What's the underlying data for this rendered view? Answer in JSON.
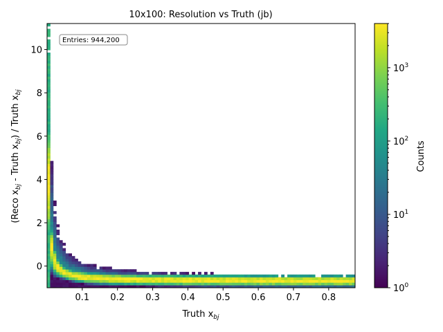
{
  "chart_data": {
    "type": "heatmap",
    "title": "10x100: Resolution vs Truth (jb)",
    "xlabel": "Truth x_bj",
    "xlabel_parts": [
      "Truth x",
      "bj"
    ],
    "ylabel": "(Reco x_bj - Truth x_bj) / Truth x_bj",
    "ylabel_parts": [
      "(Reco x",
      "bj",
      " - Truth x",
      "bj",
      ") / Truth x",
      "bj"
    ],
    "xlim": [
      0.0,
      0.875
    ],
    "ylim": [
      -1.0,
      11.2
    ],
    "x_ticks": [
      0.1,
      0.2,
      0.3,
      0.4,
      0.5,
      0.6,
      0.7,
      0.8
    ],
    "x_tick_labels": [
      "0.1",
      "0.2",
      "0.3",
      "0.4",
      "0.5",
      "0.6",
      "0.7",
      "0.8"
    ],
    "y_ticks": [
      0,
      2,
      4,
      6,
      8,
      10
    ],
    "y_tick_labels": [
      "0",
      "2",
      "4",
      "6",
      "8",
      "10"
    ],
    "annotation": "Entries: 944,200",
    "colorbar": {
      "label": "Counts",
      "scale": "log",
      "range": [
        1,
        4000
      ],
      "tick_values": [
        1,
        10,
        100,
        1000
      ],
      "tick_base": "10",
      "tick_exponents": [
        "0",
        "1",
        "2",
        "3"
      ],
      "colormap": "viridis"
    },
    "bins": {
      "nx": 100,
      "ny": 100
    },
    "grid": false,
    "legend": "none"
  }
}
